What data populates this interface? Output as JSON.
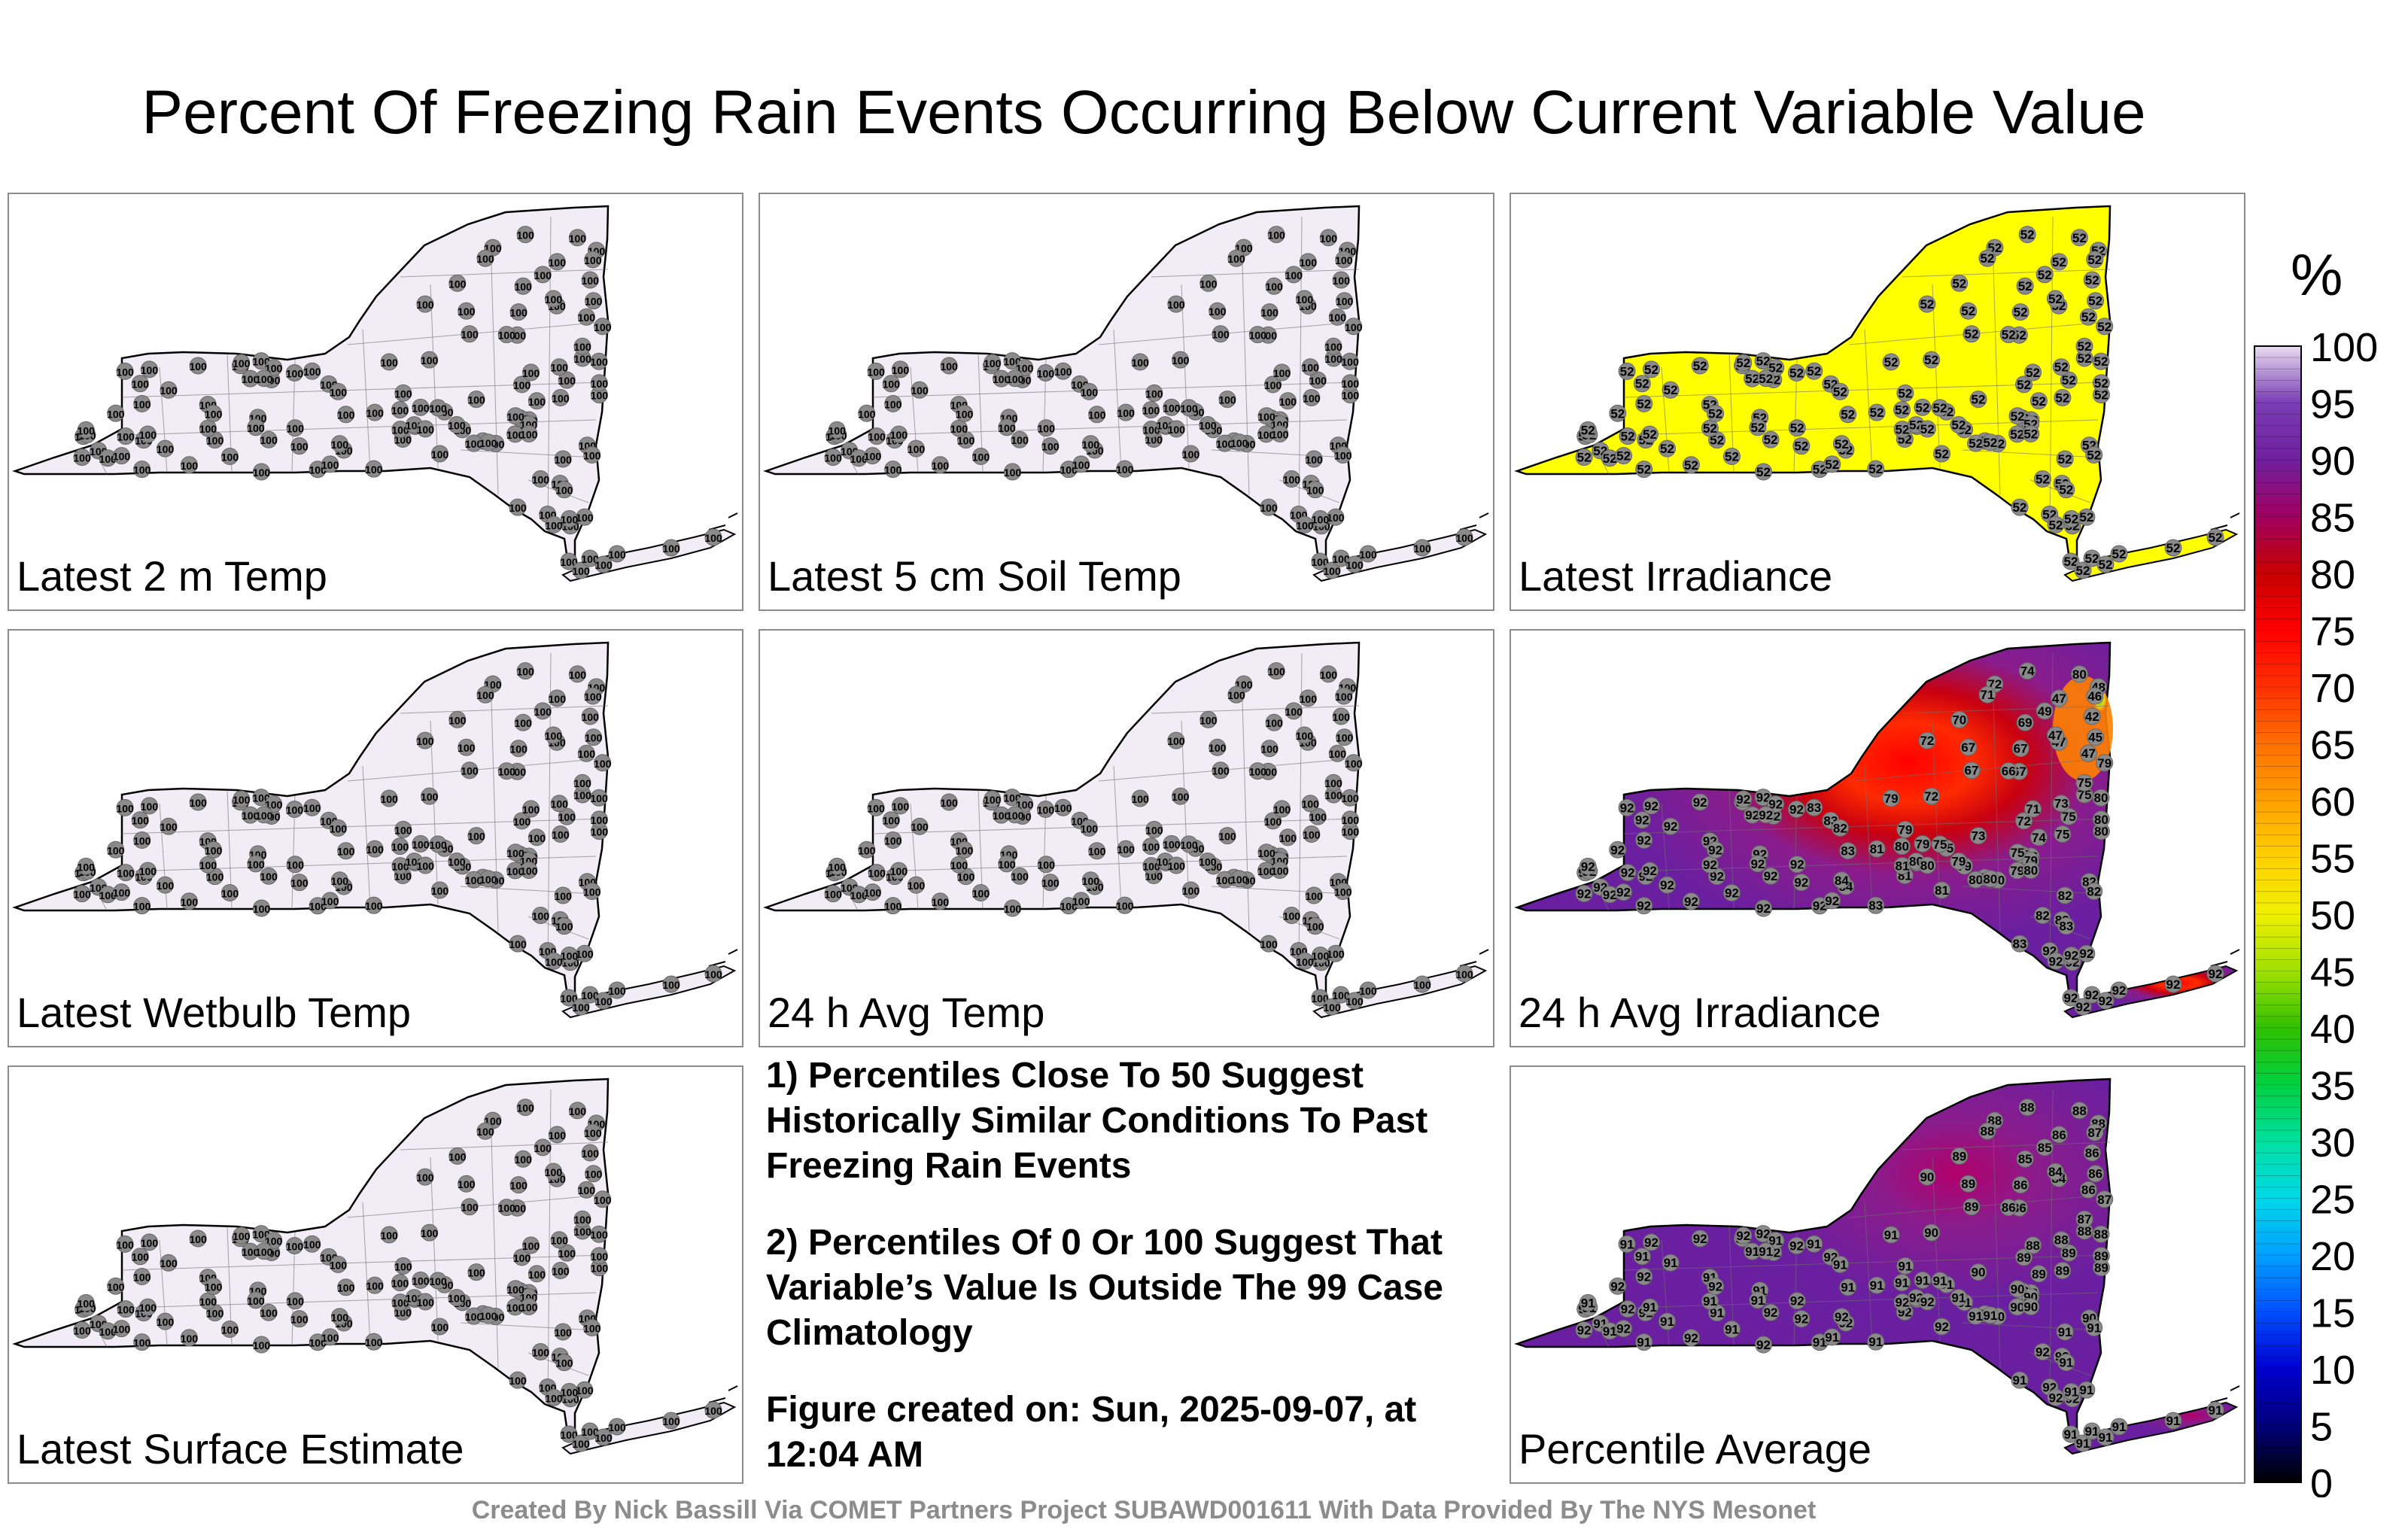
{
  "title": "Percent Of Freezing Rain Events Occurring Below Current Variable Value",
  "panels": [
    {
      "label": "Latest 2 m Temp",
      "fill": "#f1ecf5",
      "mode": "uniform",
      "value": "100"
    },
    {
      "label": "Latest 5 cm Soil Temp",
      "fill": "#f1ecf5",
      "mode": "uniform",
      "value": "100"
    },
    {
      "label": "Latest Irradiance",
      "fill": "#ffff00",
      "mode": "uniform",
      "value": "52"
    },
    {
      "label": "Latest Wetbulb Temp",
      "fill": "#f1ecf5",
      "mode": "uniform",
      "value": "100"
    },
    {
      "label": "24 h Avg Temp",
      "fill": "#f1ecf5",
      "mode": "uniform",
      "value": "100"
    },
    {
      "label": "24 h Avg Irradiance",
      "fill": "#6a1fa0",
      "mode": "irradiance",
      "value": "92"
    },
    {
      "label": "Latest Surface Estimate",
      "fill": "#f1ecf5",
      "mode": "uniform",
      "value": "100"
    },
    {
      "label": "Percentile Average",
      "fill": "#6a1fa0",
      "mode": "average",
      "value": "92"
    }
  ],
  "notes": {
    "note1": "1) Percentiles Close To 50 Suggest Historically Similar Conditions To Past Freezing Rain Events",
    "note2": "2) Percentiles Of 0 Or 100 Suggest That Variable’s Value Is Outside The 99 Case Climatology",
    "created": "Figure created on: Sun, 2025-09-07, at 12:04 AM"
  },
  "legend": {
    "unit": "%",
    "ticks": [
      "0",
      "5",
      "10",
      "15",
      "20",
      "25",
      "30",
      "35",
      "40",
      "45",
      "50",
      "55",
      "60",
      "65",
      "70",
      "75",
      "80",
      "85",
      "90",
      "95",
      "100"
    ],
    "colors": [
      "#000000",
      "#00007a",
      "#0000d0",
      "#0050ff",
      "#00a0ff",
      "#00d8e8",
      "#00e0a0",
      "#00d040",
      "#30c000",
      "#a0e000",
      "#f0f000",
      "#ffd000",
      "#ffa000",
      "#ff7000",
      "#ff3000",
      "#ff0000",
      "#c80000",
      "#a00060",
      "#7020a0",
      "#7a3cb4",
      "#e8dcf0"
    ]
  },
  "credit": "Created By Nick Bassill Via COMET Partners Project SUBAWD001611 With Data Provided By The NYS Mesonet"
}
